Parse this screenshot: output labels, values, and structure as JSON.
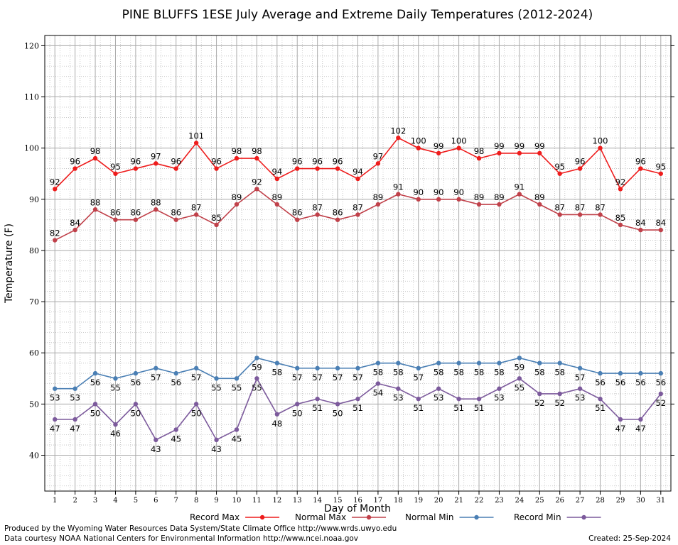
{
  "chart_data": {
    "type": "line",
    "title": "PINE BLUFFS 1ESE July Average and Extreme Daily Temperatures (2012-2024)",
    "xlabel": "Day of Month",
    "ylabel": "Temperature (F)",
    "x": [
      1,
      2,
      3,
      4,
      5,
      6,
      7,
      8,
      9,
      10,
      11,
      12,
      13,
      14,
      15,
      16,
      17,
      18,
      19,
      20,
      21,
      22,
      23,
      24,
      25,
      26,
      27,
      28,
      29,
      30,
      31
    ],
    "ylim": [
      33,
      122
    ],
    "yticks": [
      40,
      50,
      60,
      70,
      80,
      90,
      100,
      110,
      120
    ],
    "grid": true,
    "legend_position": "bottom",
    "series": [
      {
        "name": "Record Max",
        "color": "#ee1c1c",
        "values": [
          92,
          96,
          98,
          95,
          96,
          97,
          96,
          101,
          96,
          98,
          98,
          94,
          96,
          96,
          96,
          94,
          97,
          102,
          100,
          99,
          100,
          98,
          99,
          99,
          99,
          95,
          96,
          100,
          92,
          96,
          95
        ]
      },
      {
        "name": "Normal Max",
        "color": "#c0414a",
        "values": [
          82,
          84,
          88,
          86,
          86,
          88,
          86,
          87,
          85,
          89,
          92,
          89,
          86,
          87,
          86,
          87,
          89,
          91,
          90,
          90,
          90,
          89,
          89,
          91,
          89,
          87,
          87,
          87,
          85,
          84,
          84
        ]
      },
      {
        "name": "Normal Min",
        "color": "#4a7fb4",
        "values": [
          53,
          53,
          56,
          55,
          56,
          57,
          56,
          57,
          55,
          55,
          59,
          58,
          57,
          57,
          57,
          57,
          58,
          58,
          57,
          58,
          58,
          58,
          58,
          59,
          58,
          58,
          57,
          56,
          56,
          56,
          56
        ]
      },
      {
        "name": "Record Min",
        "color": "#7c5a9c",
        "values": [
          47,
          47,
          50,
          46,
          50,
          43,
          45,
          50,
          43,
          45,
          55,
          48,
          50,
          51,
          50,
          51,
          54,
          53,
          51,
          53,
          51,
          51,
          53,
          55,
          52,
          52,
          53,
          51,
          47,
          47,
          52
        ]
      }
    ]
  },
  "footer": {
    "line1": "Produced by the Wyoming Water Resources Data System/State Climate Office http://www.wrds.uwyo.edu",
    "line2": "Data courtesy NOAA National Centers for Environmental Information http://www.ncei.noaa.gov",
    "created": "Created:  25-Sep-2024"
  }
}
